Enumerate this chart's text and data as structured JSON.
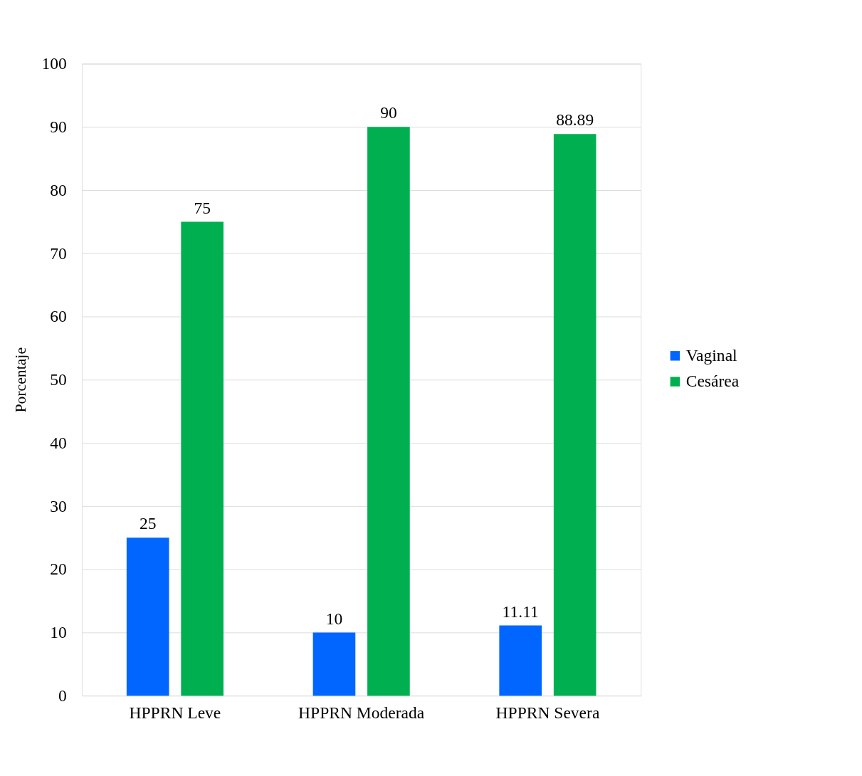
{
  "chart_data": {
    "type": "bar",
    "ylabel": "Porcentaje",
    "categories": [
      "HPPRN Leve",
      "HPPRN Moderada",
      "HPPRN Severa"
    ],
    "series": [
      {
        "name": "Vaginal",
        "color": "#0066ff",
        "values": [
          25,
          10,
          11.11
        ]
      },
      {
        "name": "Cesárea",
        "color": "#00b050",
        "values": [
          75,
          90,
          88.89
        ]
      }
    ],
    "ylim": [
      0,
      100
    ],
    "yticks": [
      0,
      10,
      20,
      30,
      40,
      50,
      60,
      70,
      80,
      90,
      100
    ],
    "grid": "y",
    "legend": "right",
    "data_labels": true
  }
}
